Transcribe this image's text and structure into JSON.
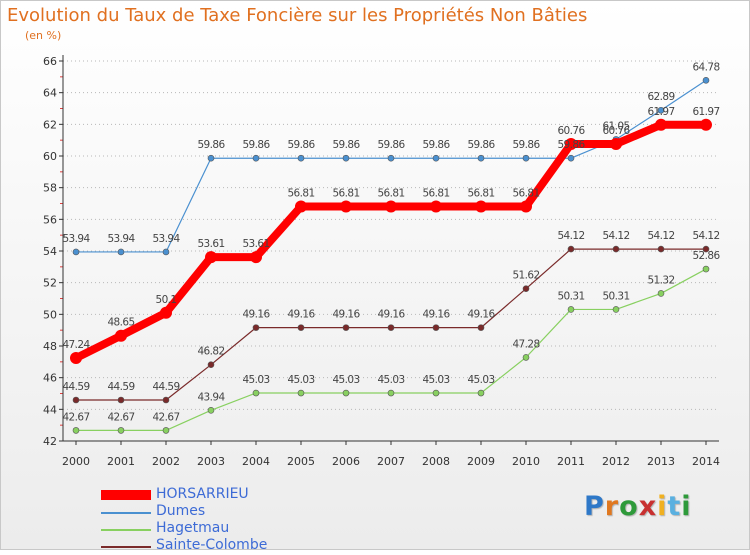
{
  "chart_data": {
    "type": "line",
    "title": "Evolution du Taux de Taxe Foncière sur les Propriétés Non Bâties",
    "subtitle": "(en %)",
    "x": [
      "2000",
      "2001",
      "2002",
      "2003",
      "2004",
      "2005",
      "2006",
      "2007",
      "2008",
      "2009",
      "2010",
      "2011",
      "2012",
      "2013",
      "2014"
    ],
    "ylim": [
      42,
      66
    ],
    "yticks": [
      42,
      44,
      46,
      48,
      50,
      52,
      54,
      56,
      58,
      60,
      62,
      64,
      66
    ],
    "grid": "horizontal-dotted",
    "legend_position": "bottom-left",
    "series": [
      {
        "name": "HORSARRIEU",
        "color": "#ff0000",
        "values": [
          47.24,
          48.65,
          50.1,
          53.61,
          53.61,
          56.81,
          56.81,
          56.81,
          56.81,
          56.81,
          56.81,
          60.76,
          60.76,
          61.97,
          61.97
        ],
        "labels": [
          "47.24",
          "48.65",
          "50.1",
          "53.61",
          "53.61",
          "56.81",
          "56.81",
          "56.81",
          "56.81",
          "56.81",
          "56.81",
          "60.76",
          "60.76",
          "61.97",
          "61.97"
        ]
      },
      {
        "name": "Dumes",
        "color": "#4a90d0",
        "values": [
          53.94,
          53.94,
          53.94,
          59.86,
          59.86,
          59.86,
          59.86,
          59.86,
          59.86,
          59.86,
          59.86,
          59.86,
          61.05,
          62.89,
          64.78
        ],
        "labels": [
          "53.94",
          "53.94",
          "53.94",
          "59.86",
          "59.86",
          "59.86",
          "59.86",
          "59.86",
          "59.86",
          "59.86",
          "59.86",
          "59.86",
          "61.05",
          "62.89",
          "64.78"
        ]
      },
      {
        "name": "Hagetmau",
        "color": "#88d060",
        "values": [
          42.67,
          42.67,
          42.67,
          43.94,
          45.03,
          45.03,
          45.03,
          45.03,
          45.03,
          45.03,
          47.28,
          50.31,
          50.31,
          51.32,
          52.86
        ],
        "labels": [
          "42.67",
          "42.67",
          "42.67",
          "43.94",
          "45.03",
          "45.03",
          "45.03",
          "45.03",
          "45.03",
          "45.03",
          "47.28",
          "50.31",
          "50.31",
          "51.32",
          "52.86"
        ]
      },
      {
        "name": "Sainte-Colombe",
        "color": "#7a2a2a",
        "values": [
          44.59,
          44.59,
          44.59,
          46.82,
          49.16,
          49.16,
          49.16,
          49.16,
          49.16,
          49.16,
          51.62,
          54.12,
          54.12,
          54.12,
          54.12
        ],
        "labels": [
          "44.59",
          "44.59",
          "44.59",
          "46.82",
          "49.16",
          "49.16",
          "49.16",
          "49.16",
          "49.16",
          "49.16",
          "51.62",
          "54.12",
          "54.12",
          "54.12",
          "54.12"
        ]
      }
    ]
  },
  "legend": {
    "items": [
      {
        "label": "HORSARRIEU",
        "color": "#ff0000"
      },
      {
        "label": "Dumes",
        "color": "#4a90d0"
      },
      {
        "label": "Hagetmau",
        "color": "#88d060"
      },
      {
        "label": "Sainte-Colombe",
        "color": "#7a2a2a"
      }
    ]
  },
  "logo": {
    "letters": [
      "P",
      "r",
      "o",
      "x",
      "i",
      "t",
      "i"
    ]
  }
}
